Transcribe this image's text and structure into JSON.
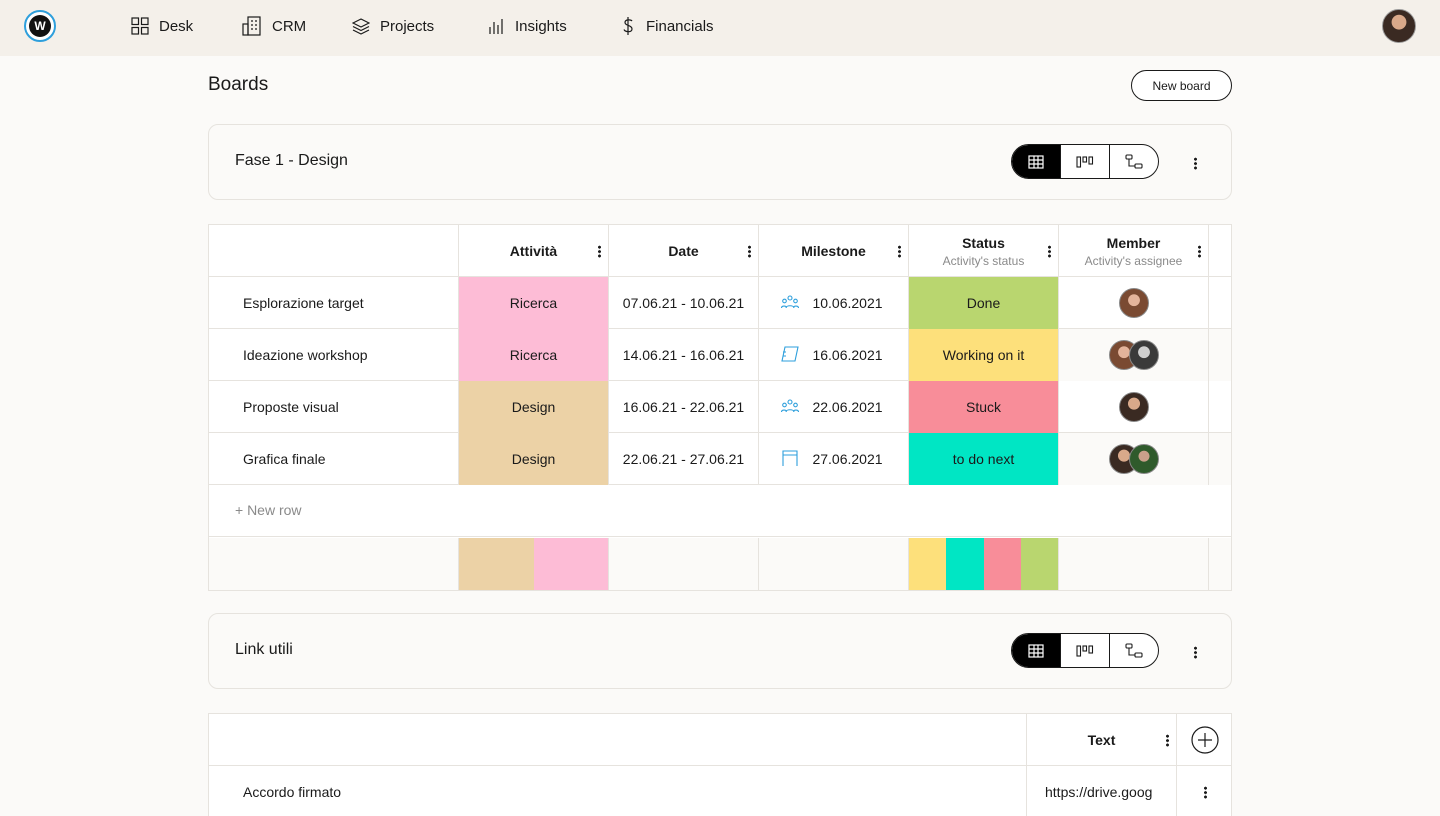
{
  "nav": {
    "logo_letter": "W",
    "items": [
      {
        "label": "Desk",
        "icon": "grid-icon"
      },
      {
        "label": "CRM",
        "icon": "building-icon"
      },
      {
        "label": "Projects",
        "icon": "layers-icon"
      },
      {
        "label": "Insights",
        "icon": "bar-chart-icon"
      },
      {
        "label": "Financials",
        "icon": "dollar-icon"
      }
    ]
  },
  "page": {
    "title": "Boards",
    "new_board_label": "New board"
  },
  "boards": [
    {
      "title": "Fase 1 - Design",
      "columns": [
        {
          "label": "Attività",
          "sub": ""
        },
        {
          "label": "Date",
          "sub": ""
        },
        {
          "label": "Milestone",
          "sub": ""
        },
        {
          "label": "Status",
          "sub": "Activity's status"
        },
        {
          "label": "Member",
          "sub": "Activity's assignee"
        }
      ],
      "rows": [
        {
          "name": "Esplorazione target",
          "activity": "Ricerca",
          "date": "07.06.21 - 10.06.21",
          "milestone": "10.06.2021",
          "milestone_icon": "people-icon",
          "status": "Done",
          "members": 1
        },
        {
          "name": "Ideazione workshop",
          "activity": "Ricerca",
          "date": "14.06.21 - 16.06.21",
          "milestone": "16.06.2021",
          "milestone_icon": "flag-icon",
          "status": "Working on it",
          "members": 2
        },
        {
          "name": "Proposte visual",
          "activity": "Design",
          "date": "16.06.21 - 22.06.21",
          "milestone": "22.06.2021",
          "milestone_icon": "people-icon",
          "status": "Stuck",
          "members": 1
        },
        {
          "name": "Grafica finale",
          "activity": "Design",
          "date": "22.06.21 - 27.06.21",
          "milestone": "27.06.2021",
          "milestone_icon": "finish-icon",
          "status": "to do next",
          "members": 2
        }
      ],
      "new_row_label": "+ New row"
    },
    {
      "title": "Link utili",
      "columns": [
        {
          "label": "Text",
          "sub": ""
        }
      ],
      "rows": [
        {
          "name": "Accordo firmato",
          "text": "https://drive.goog"
        }
      ]
    }
  ],
  "colors": {
    "ricerca": "#fdbcd6",
    "design": "#ecd2a6",
    "done": "#b9d66f",
    "working": "#fde07b",
    "stuck": "#f88d99",
    "todo": "#00e6c4",
    "accent": "#2e9fdc"
  }
}
